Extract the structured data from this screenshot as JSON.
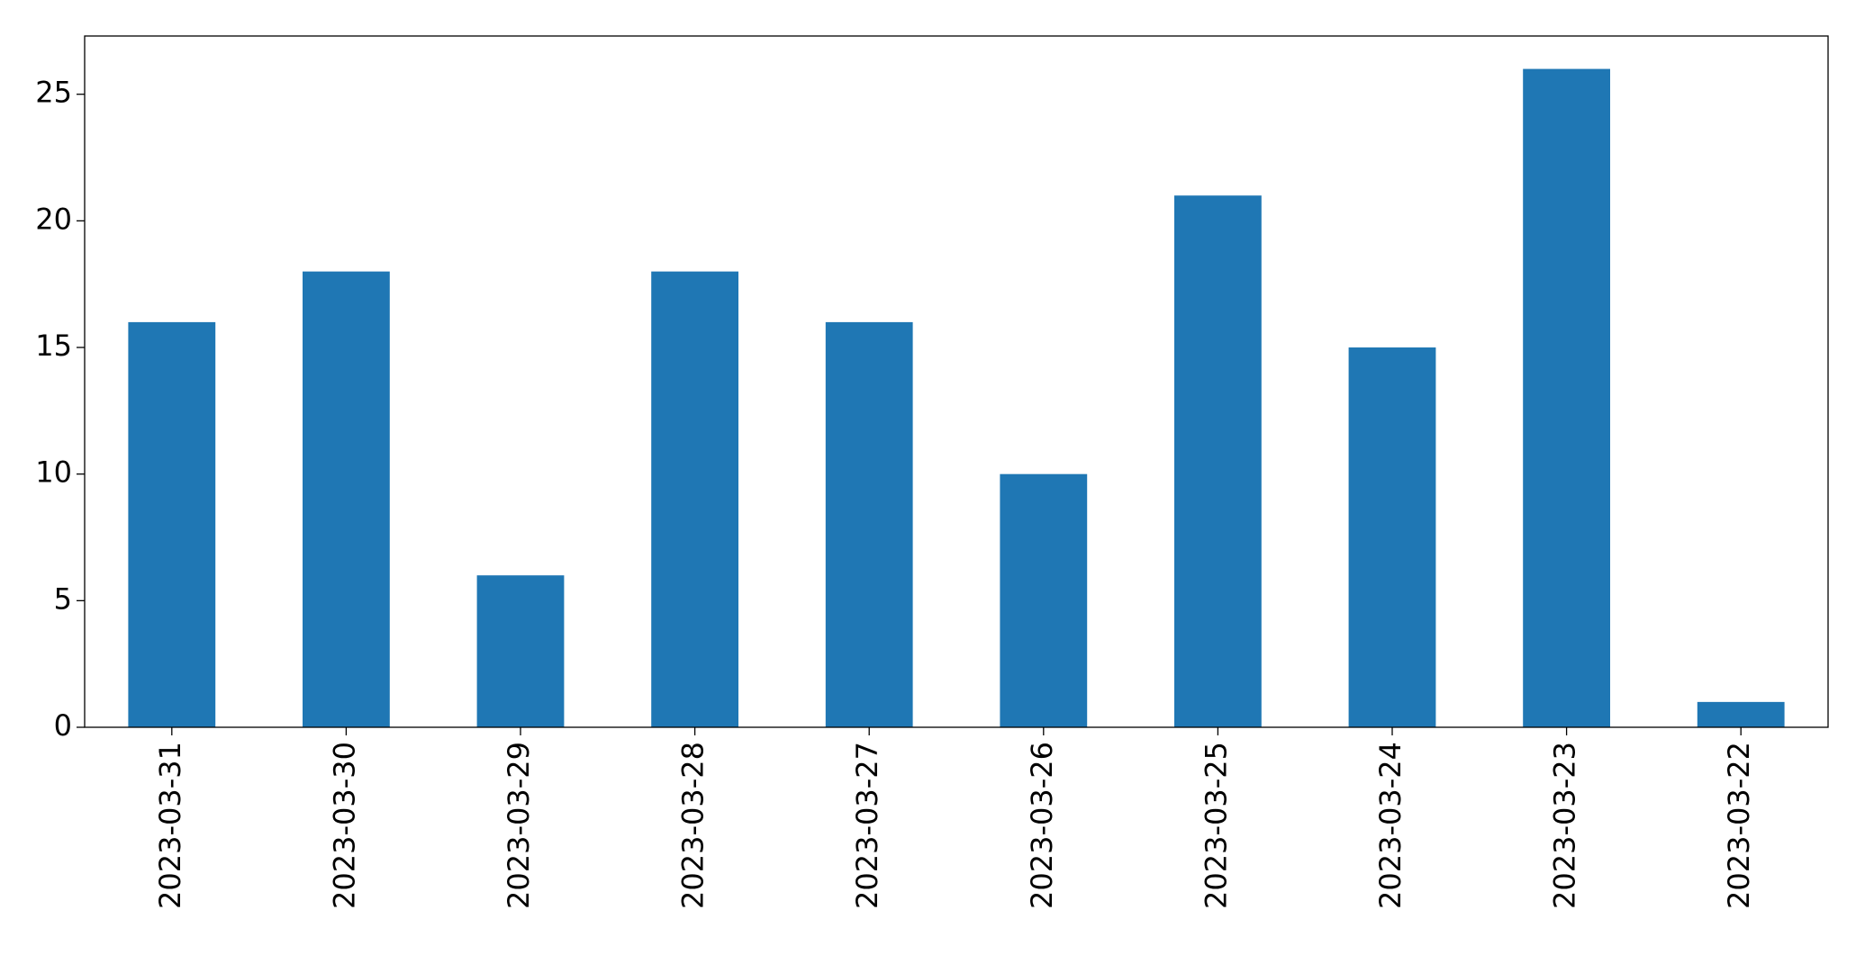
{
  "chart_data": {
    "type": "bar",
    "categories": [
      "2023-03-31",
      "2023-03-30",
      "2023-03-29",
      "2023-03-28",
      "2023-03-27",
      "2023-03-26",
      "2023-03-25",
      "2023-03-24",
      "2023-03-23",
      "2023-03-22"
    ],
    "values": [
      16,
      18,
      6,
      18,
      16,
      10,
      21,
      15,
      26,
      1
    ],
    "color": "#1f77b4",
    "ylim": [
      0,
      27.3
    ],
    "yticks": [
      0,
      5,
      10,
      15,
      20,
      25
    ],
    "grid": false
  }
}
